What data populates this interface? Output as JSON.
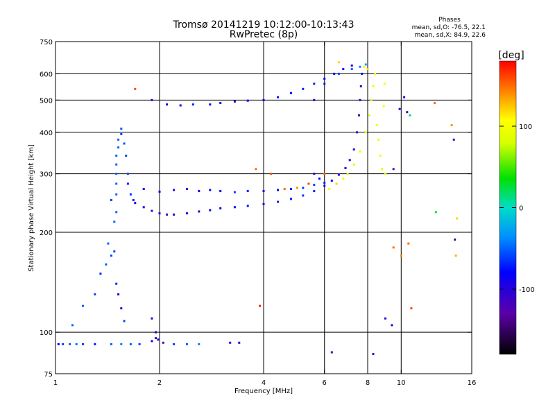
{
  "chart_data": {
    "type": "scatter",
    "title": "Tromsø 20141219 10:12:00-10:13:43",
    "subtitle": "RwPretec (8p)",
    "stats": {
      "heading": "Phases",
      "line1": "mean, sd,O: -76.5, 22.1",
      "line2": "mean, sd,X:  84.9, 22.6"
    },
    "xlabel": "Frequency [MHz]",
    "ylabel": "Stationary phase Virtual Height [km]",
    "x_scale": "log",
    "y_scale": "log",
    "xlim": [
      1,
      16
    ],
    "ylim": [
      75,
      750
    ],
    "xticks": [
      {
        "value": 1,
        "label": "1"
      },
      {
        "value": 2,
        "label": "2"
      },
      {
        "value": 4,
        "label": "4"
      },
      {
        "value": 6,
        "label": "6"
      },
      {
        "value": 8,
        "label": "8"
      },
      {
        "value": 10,
        "label": "10"
      },
      {
        "value": 16,
        "label": "16"
      }
    ],
    "yticks": [
      {
        "value": 75,
        "label": "75"
      },
      {
        "value": 100,
        "label": "100"
      },
      {
        "value": 200,
        "label": "200"
      },
      {
        "value": 300,
        "label": "300"
      },
      {
        "value": 400,
        "label": "400"
      },
      {
        "value": 500,
        "label": "500"
      },
      {
        "value": 600,
        "label": "600"
      },
      {
        "value": 750,
        "label": "750"
      }
    ],
    "grid_x": [
      2,
      4,
      6,
      8,
      10
    ],
    "grid_y": [
      100,
      200,
      300,
      400,
      500,
      600
    ],
    "colorbar": {
      "label": "[deg]",
      "range": [
        -180,
        180
      ],
      "ticks": [
        {
          "value": 100,
          "label": "100"
        },
        {
          "value": 0,
          "label": "0"
        },
        {
          "value": -100,
          "label": "-100"
        }
      ]
    },
    "grid": true,
    "points": [
      [
        1.02,
        92,
        -80
      ],
      [
        1.05,
        92,
        -60
      ],
      [
        1.1,
        92,
        -50
      ],
      [
        1.15,
        92,
        -45
      ],
      [
        1.2,
        92,
        -60
      ],
      [
        1.3,
        92,
        -70
      ],
      [
        1.45,
        92,
        -50
      ],
      [
        1.55,
        92,
        -40
      ],
      [
        1.65,
        92,
        -50
      ],
      [
        1.75,
        92,
        -60
      ],
      [
        1.9,
        94,
        -90
      ],
      [
        1.95,
        96,
        -110
      ],
      [
        2.05,
        93,
        -120
      ],
      [
        2.2,
        92,
        -60
      ],
      [
        2.4,
        92,
        -50
      ],
      [
        2.6,
        92,
        -40
      ],
      [
        3.2,
        93,
        -110
      ],
      [
        3.4,
        93,
        -100
      ],
      [
        1.12,
        105,
        -50
      ],
      [
        1.2,
        120,
        -50
      ],
      [
        1.3,
        130,
        -60
      ],
      [
        1.35,
        150,
        -70
      ],
      [
        1.4,
        160,
        -50
      ],
      [
        1.45,
        170,
        -60
      ],
      [
        1.42,
        185,
        -50
      ],
      [
        1.48,
        175,
        -60
      ],
      [
        1.5,
        140,
        -70
      ],
      [
        1.52,
        130,
        -80
      ],
      [
        1.55,
        118,
        -90
      ],
      [
        1.58,
        108,
        -60
      ],
      [
        1.9,
        110,
        -100
      ],
      [
        1.95,
        100,
        -80
      ],
      [
        1.98,
        95,
        -90
      ],
      [
        1.45,
        250,
        -60
      ],
      [
        1.5,
        230,
        -50
      ],
      [
        1.5,
        260,
        -50
      ],
      [
        1.5,
        280,
        -50
      ],
      [
        1.5,
        300,
        -50
      ],
      [
        1.5,
        320,
        -50
      ],
      [
        1.5,
        340,
        -50
      ],
      [
        1.52,
        360,
        -50
      ],
      [
        1.52,
        380,
        -50
      ],
      [
        1.55,
        410,
        -55
      ],
      [
        1.55,
        395,
        -60
      ],
      [
        1.58,
        370,
        -55
      ],
      [
        1.6,
        340,
        -60
      ],
      [
        1.62,
        300,
        -60
      ],
      [
        1.62,
        280,
        -70
      ],
      [
        1.65,
        260,
        -65
      ],
      [
        1.68,
        250,
        -70
      ],
      [
        1.48,
        215,
        -50
      ],
      [
        1.7,
        245,
        -90
      ],
      [
        1.8,
        238,
        -100
      ],
      [
        1.9,
        232,
        -105
      ],
      [
        2.0,
        228,
        -110
      ],
      [
        2.1,
        226,
        -110
      ],
      [
        2.2,
        226,
        -100
      ],
      [
        2.4,
        228,
        -95
      ],
      [
        2.6,
        231,
        -90
      ],
      [
        2.8,
        233,
        -80
      ],
      [
        3.0,
        236,
        -80
      ],
      [
        3.3,
        238,
        -80
      ],
      [
        3.6,
        240,
        -75
      ],
      [
        4.0,
        243,
        -75
      ],
      [
        4.4,
        247,
        -70
      ],
      [
        4.8,
        252,
        -70
      ],
      [
        5.2,
        258,
        -65
      ],
      [
        5.6,
        266,
        -70
      ],
      [
        6.0,
        276,
        -75
      ],
      [
        6.3,
        286,
        -80
      ],
      [
        6.6,
        298,
        -90
      ],
      [
        6.9,
        312,
        -100
      ],
      [
        7.1,
        330,
        -100
      ],
      [
        7.3,
        355,
        -105
      ],
      [
        7.45,
        400,
        -110
      ],
      [
        7.55,
        450,
        -110
      ],
      [
        7.6,
        500,
        -110
      ],
      [
        7.65,
        550,
        -100
      ],
      [
        7.7,
        600,
        -90
      ],
      [
        1.8,
        270,
        -80
      ],
      [
        2.0,
        265,
        -90
      ],
      [
        2.2,
        268,
        -100
      ],
      [
        2.4,
        270,
        -95
      ],
      [
        2.6,
        266,
        -90
      ],
      [
        2.8,
        268,
        -85
      ],
      [
        3.0,
        266,
        -80
      ],
      [
        3.3,
        264,
        -60
      ],
      [
        3.6,
        266,
        -70
      ],
      [
        4.0,
        266,
        -90
      ],
      [
        4.4,
        268,
        -80
      ],
      [
        4.8,
        270,
        -70
      ],
      [
        5.2,
        272,
        -60
      ],
      [
        5.6,
        278,
        -60
      ],
      [
        6.0,
        282,
        -70
      ],
      [
        1.9,
        500,
        -100
      ],
      [
        2.1,
        485,
        -90
      ],
      [
        2.3,
        482,
        -80
      ],
      [
        2.5,
        485,
        -70
      ],
      [
        2.8,
        485,
        -80
      ],
      [
        3.0,
        490,
        -90
      ],
      [
        3.3,
        495,
        -90
      ],
      [
        3.6,
        498,
        -80
      ],
      [
        4.0,
        500,
        -80
      ],
      [
        4.4,
        510,
        -75
      ],
      [
        4.8,
        525,
        -75
      ],
      [
        5.2,
        540,
        -70
      ],
      [
        5.6,
        560,
        -70
      ],
      [
        6.0,
        580,
        -75
      ],
      [
        6.4,
        600,
        -80
      ],
      [
        6.8,
        620,
        -80
      ],
      [
        7.2,
        635,
        -90
      ],
      [
        5.6,
        500,
        -80
      ],
      [
        6.0,
        560,
        -70
      ],
      [
        6.6,
        600,
        -60
      ],
      [
        7.2,
        620,
        -50
      ],
      [
        7.6,
        630,
        -40
      ],
      [
        7.9,
        640,
        -30
      ],
      [
        6.2,
        270,
        110
      ],
      [
        6.5,
        280,
        120
      ],
      [
        6.8,
        290,
        100
      ],
      [
        7.0,
        300,
        90
      ],
      [
        7.3,
        320,
        80
      ],
      [
        7.6,
        350,
        90
      ],
      [
        7.9,
        400,
        100
      ],
      [
        8.1,
        450,
        90
      ],
      [
        8.2,
        500,
        90
      ],
      [
        8.3,
        550,
        95
      ],
      [
        8.4,
        600,
        100
      ],
      [
        8.0,
        620,
        120
      ],
      [
        7.8,
        630,
        110
      ],
      [
        8.5,
        420,
        100
      ],
      [
        8.6,
        380,
        110
      ],
      [
        8.7,
        340,
        100
      ],
      [
        8.8,
        310,
        90
      ],
      [
        9.0,
        300,
        100
      ],
      [
        8.9,
        480,
        100
      ],
      [
        8.95,
        560,
        110
      ],
      [
        5.0,
        272,
        140
      ],
      [
        5.4,
        280,
        160
      ],
      [
        6.0,
        300,
        150
      ],
      [
        4.6,
        270,
        150
      ],
      [
        6.6,
        650,
        120
      ],
      [
        8.8,
        310,
        100
      ],
      [
        1.7,
        540,
        160
      ],
      [
        3.8,
        310,
        150
      ],
      [
        3.9,
        120,
        170
      ],
      [
        4.2,
        300,
        160
      ],
      [
        9.5,
        180,
        150
      ],
      [
        10,
        170,
        140
      ],
      [
        10.5,
        185,
        150
      ],
      [
        10.7,
        118,
        160
      ],
      [
        12.5,
        490,
        150
      ],
      [
        12.6,
        230,
        30
      ],
      [
        14,
        420,
        140
      ],
      [
        14.2,
        380,
        -120
      ],
      [
        14.3,
        190,
        -140
      ],
      [
        14.4,
        170,
        130
      ],
      [
        14.5,
        220,
        120
      ],
      [
        9.5,
        310,
        -130
      ],
      [
        9.9,
        470,
        -100
      ],
      [
        10.2,
        510,
        -100
      ],
      [
        10.4,
        460,
        -110
      ],
      [
        10.6,
        450,
        20
      ],
      [
        9.0,
        110,
        -110
      ],
      [
        9.4,
        105,
        -100
      ],
      [
        8.3,
        86,
        -120
      ],
      [
        6.3,
        87,
        -110
      ],
      [
        5.6,
        300,
        -100
      ],
      [
        5.8,
        290,
        -90
      ]
    ]
  }
}
